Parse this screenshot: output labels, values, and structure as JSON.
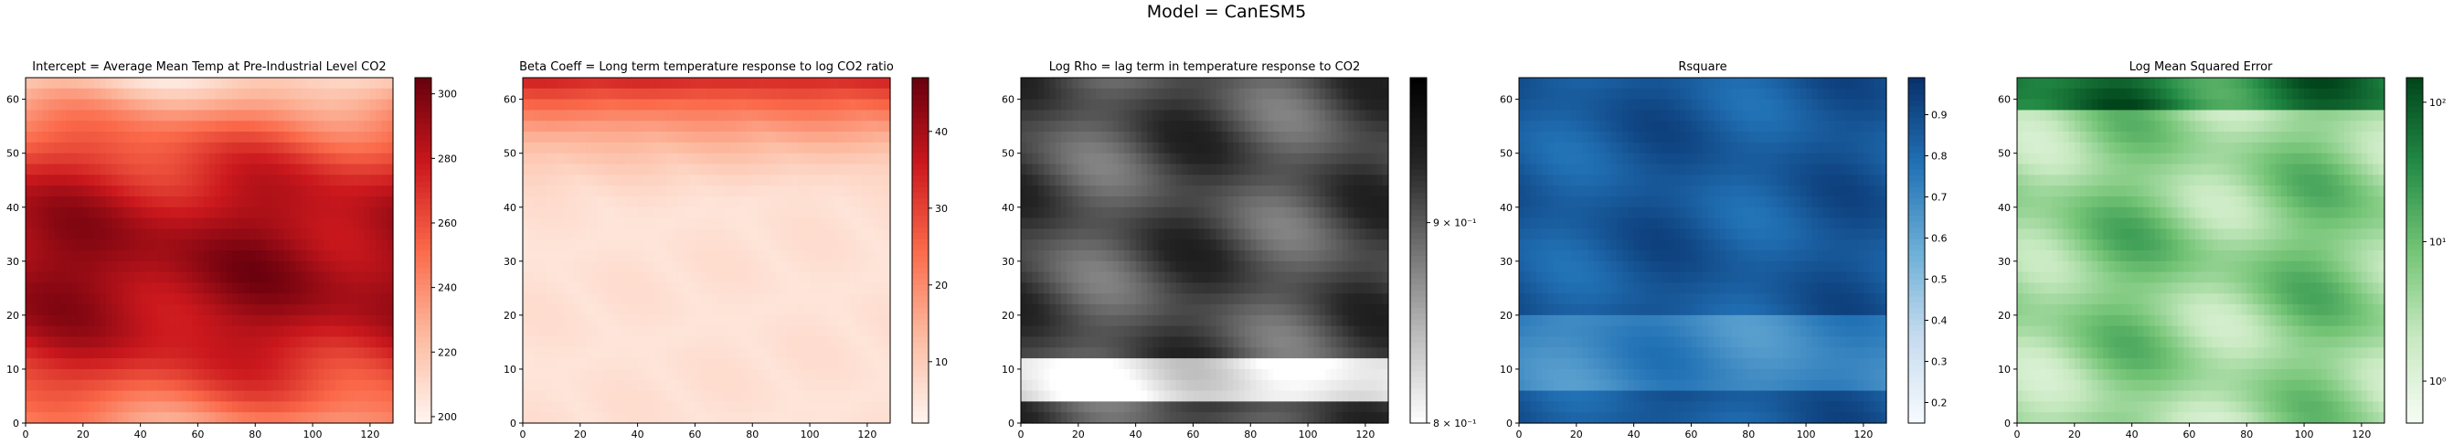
{
  "figure": {
    "suptitle": "Model = CanESM5"
  },
  "chart_data": [
    {
      "type": "heatmap",
      "title": "Intercept = Average Mean Temp at Pre-Industrial Level CO2",
      "xlim": [
        0,
        128
      ],
      "ylim": [
        0,
        64
      ],
      "xticks": [
        "0",
        "20",
        "40",
        "60",
        "80",
        "100",
        "120"
      ],
      "yticks": [
        "0",
        "10",
        "20",
        "30",
        "40",
        "50",
        "60"
      ],
      "colormap": "Reds",
      "cmap_colors": [
        "#fff5f0",
        "#fcbba1",
        "#fb6a4a",
        "#cb181d",
        "#67000d"
      ],
      "colorbar": {
        "scale": "linear",
        "range": [
          198,
          305
        ],
        "ticks": [
          "200",
          "220",
          "240",
          "260",
          "280",
          "300"
        ],
        "tick_values": [
          200,
          220,
          240,
          260,
          280,
          300
        ]
      }
    },
    {
      "type": "heatmap",
      "title": "Beta Coeff = Long term temperature response to log CO2 ratio",
      "xlim": [
        0,
        128
      ],
      "ylim": [
        0,
        64
      ],
      "xticks": [
        "0",
        "20",
        "40",
        "60",
        "80",
        "100",
        "120"
      ],
      "yticks": [
        "0",
        "10",
        "20",
        "30",
        "40",
        "50",
        "60"
      ],
      "colormap": "Reds",
      "cmap_colors": [
        "#fff5f0",
        "#fcbba1",
        "#fb6a4a",
        "#cb181d",
        "#67000d"
      ],
      "colorbar": {
        "scale": "linear",
        "range": [
          2,
          47
        ],
        "ticks": [
          "10",
          "20",
          "30",
          "40"
        ],
        "tick_values": [
          10,
          20,
          30,
          40
        ]
      }
    },
    {
      "type": "heatmap",
      "title": "Log Rho =  lag  term  in  temperature  response  to  CO2",
      "xlim": [
        0,
        128
      ],
      "ylim": [
        0,
        64
      ],
      "xticks": [
        "0",
        "20",
        "40",
        "60",
        "80",
        "100",
        "120"
      ],
      "yticks": [
        "0",
        "10",
        "20",
        "30",
        "40",
        "50",
        "60"
      ],
      "colormap": "Greys",
      "cmap_colors": [
        "#ffffff",
        "#bdbdbd",
        "#737373",
        "#252525",
        "#000000"
      ],
      "colorbar": {
        "scale": "log",
        "range": [
          0.8,
          0.98
        ],
        "ticks": [
          "9 × 10⁻¹",
          "8 × 10⁻¹"
        ],
        "tick_values": [
          0.9,
          0.8
        ]
      }
    },
    {
      "type": "heatmap",
      "title": "Rsquare",
      "xlim": [
        0,
        128
      ],
      "ylim": [
        0,
        64
      ],
      "xticks": [
        "0",
        "20",
        "40",
        "60",
        "80",
        "100",
        "120"
      ],
      "yticks": [
        "0",
        "10",
        "20",
        "30",
        "40",
        "50",
        "60"
      ],
      "colormap": "Blues",
      "cmap_colors": [
        "#f7fbff",
        "#c6dbef",
        "#6baed6",
        "#2171b5",
        "#08306b"
      ],
      "colorbar": {
        "scale": "linear",
        "range": [
          0.15,
          0.99
        ],
        "ticks": [
          "0.2",
          "0.3",
          "0.4",
          "0.5",
          "0.6",
          "0.7",
          "0.8",
          "0.9"
        ],
        "tick_values": [
          0.2,
          0.3,
          0.4,
          0.5,
          0.6,
          0.7,
          0.8,
          0.9
        ]
      }
    },
    {
      "type": "heatmap",
      "title": "Log Mean Squared Error",
      "xlim": [
        0,
        128
      ],
      "ylim": [
        0,
        64
      ],
      "xticks": [
        "0",
        "20",
        "40",
        "60",
        "80",
        "100",
        "120"
      ],
      "yticks": [
        "0",
        "10",
        "20",
        "30",
        "40",
        "50",
        "60"
      ],
      "colormap": "Greens",
      "cmap_colors": [
        "#f7fcf5",
        "#c7e9c0",
        "#74c476",
        "#238b45",
        "#00441b"
      ],
      "colorbar": {
        "scale": "log",
        "range": [
          0.5,
          150
        ],
        "ticks": [
          "10⁰",
          "10¹",
          "10²"
        ],
        "tick_values": [
          1,
          10,
          100
        ]
      }
    }
  ]
}
